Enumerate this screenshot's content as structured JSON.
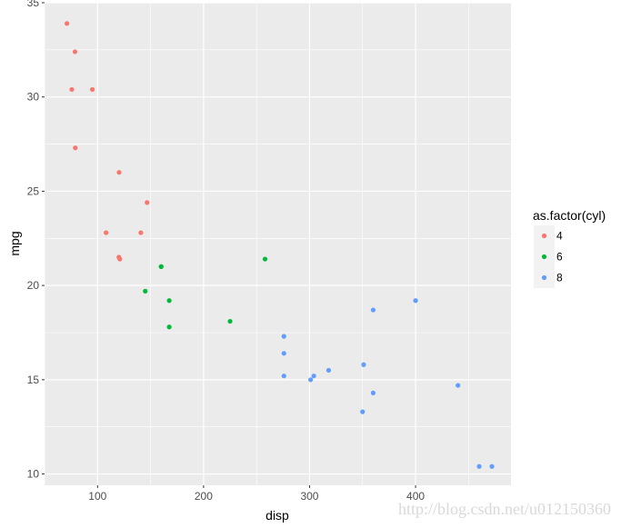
{
  "chart_data": {
    "type": "scatter",
    "xlabel": "disp",
    "ylabel": "mpg",
    "xlim": [
      50,
      490
    ],
    "ylim": [
      9.4,
      35
    ],
    "x_ticks": [
      100,
      200,
      300,
      400
    ],
    "y_ticks": [
      10,
      15,
      20,
      25,
      30,
      35
    ],
    "x_tick_labels": [
      "100",
      "200",
      "300",
      "400"
    ],
    "y_tick_labels": [
      "10",
      "15",
      "20",
      "25",
      "30",
      "35"
    ],
    "grid": true,
    "legend": {
      "title": "as.factor(cyl)",
      "placement": "right"
    },
    "series": [
      {
        "name": "4",
        "color": "#F8766D",
        "points": [
          [
            71.1,
            33.9
          ],
          [
            78.7,
            32.4
          ],
          [
            75.7,
            30.4
          ],
          [
            95.1,
            30.4
          ],
          [
            79.0,
            27.3
          ],
          [
            120.3,
            26.0
          ],
          [
            146.7,
            24.4
          ],
          [
            108.0,
            22.8
          ],
          [
            140.8,
            22.8
          ],
          [
            120.1,
            21.5
          ],
          [
            121.0,
            21.4
          ]
        ]
      },
      {
        "name": "6",
        "color": "#00BA38",
        "points": [
          [
            258.0,
            21.4
          ],
          [
            160.0,
            21.0
          ],
          [
            160.0,
            21.0
          ],
          [
            145.0,
            19.7
          ],
          [
            167.6,
            19.2
          ],
          [
            167.6,
            17.8
          ],
          [
            225.0,
            18.1
          ]
        ]
      },
      {
        "name": "8",
        "color": "#619CFF",
        "points": [
          [
            400.0,
            19.2
          ],
          [
            360.0,
            18.7
          ],
          [
            275.8,
            17.3
          ],
          [
            275.8,
            16.4
          ],
          [
            351.0,
            15.8
          ],
          [
            318.0,
            15.5
          ],
          [
            304.0,
            15.2
          ],
          [
            275.8,
            15.2
          ],
          [
            301.0,
            15.0
          ],
          [
            360.0,
            14.3
          ],
          [
            440.0,
            14.7
          ],
          [
            350.0,
            13.3
          ],
          [
            472.0,
            10.4
          ],
          [
            460.0,
            10.4
          ]
        ]
      }
    ]
  },
  "watermark": "http://blog.csdn.net/u012150360"
}
